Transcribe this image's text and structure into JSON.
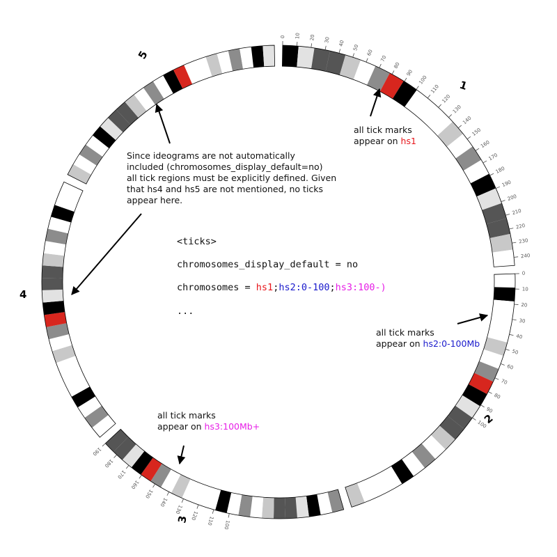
{
  "colors": {
    "hs1": "#e8161b",
    "hs2": "#1a1acc",
    "hs3": "#e61ee6",
    "band_red": "#d7261e",
    "band_black": "#000000",
    "band_dark": "#555555",
    "band_mid": "#8c8c8c",
    "band_light": "#c8c8c8",
    "band_pale": "#e2e2e2",
    "band_white": "#ffffff"
  },
  "chromosome_labels": {
    "hs1": "1",
    "hs2": "2",
    "hs3": "3",
    "hs4": "4",
    "hs5": "5"
  },
  "ticks": {
    "hs1": [
      "0",
      "10",
      "20",
      "30",
      "40",
      "50",
      "60",
      "70",
      "80",
      "90",
      "100",
      "110",
      "120",
      "130",
      "140",
      "150",
      "160",
      "170",
      "180",
      "190",
      "200",
      "210",
      "220",
      "230",
      "240"
    ],
    "hs2": [
      "0",
      "10",
      "20",
      "30",
      "40",
      "50",
      "60",
      "70",
      "80",
      "90",
      "100"
    ],
    "hs3": [
      "100",
      "110",
      "120",
      "130",
      "140",
      "150",
      "160",
      "170",
      "180",
      "190"
    ]
  },
  "notes": {
    "note_hs4": {
      "lines": [
        "Since ideograms are not automatically",
        "included (chromosomes_display_default=no)",
        "all tick regions must be explicitly defined. Given",
        "that hs4 and hs5 are not mentioned, no ticks",
        "appear here."
      ]
    },
    "note_hs1": {
      "prefix": "all tick marks",
      "line2": "appear on ",
      "highlight": "hs1"
    },
    "note_hs2": {
      "prefix": "all tick marks",
      "line2": "appear on ",
      "highlight": "hs2:0-100Mb"
    },
    "note_hs3": {
      "prefix": "all tick marks",
      "line2": "appear on ",
      "highlight": "hs3:100Mb+"
    }
  },
  "config_code": {
    "line1": "<ticks>",
    "line2": "chromosomes_display_default = no",
    "line3_prefix": "chromosomes = ",
    "line3_hs1": "hs1",
    "line3_sep1": ";",
    "line3_hs2": "hs2:0-100",
    "line3_sep2": ";",
    "line3_hs3": "hs3:100-)",
    "line4": "..."
  }
}
